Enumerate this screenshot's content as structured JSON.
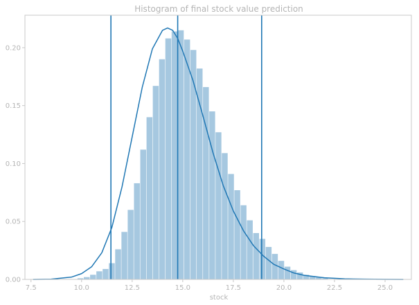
{
  "chart_data": {
    "type": "bar",
    "title": "Histogram of final stock value prediction",
    "xlabel": "stock",
    "ylabel": "",
    "xlim": [
      7.2,
      26.3
    ],
    "ylim": [
      0,
      0.228
    ],
    "xticks": [
      "7.5",
      "10.0",
      "12.5",
      "15.0",
      "17.5",
      "20.0",
      "22.5",
      "25.0"
    ],
    "yticks": [
      "0.00",
      "0.05",
      "0.10",
      "0.15",
      "0.20"
    ],
    "grid": false,
    "bins": {
      "start": 9.8,
      "width": 0.31,
      "values": [
        0.001,
        0.002,
        0.004,
        0.007,
        0.009,
        0.014,
        0.026,
        0.041,
        0.06,
        0.083,
        0.112,
        0.14,
        0.167,
        0.19,
        0.208,
        0.214,
        0.215,
        0.207,
        0.198,
        0.182,
        0.166,
        0.145,
        0.127,
        0.109,
        0.091,
        0.077,
        0.064,
        0.051,
        0.04,
        0.035,
        0.028,
        0.022,
        0.016,
        0.011,
        0.008,
        0.006,
        0.004,
        0.003,
        0.002,
        0.001
      ]
    },
    "kde": {
      "x": [
        7.6,
        8.5,
        9.5,
        10.0,
        10.5,
        11.0,
        11.5,
        12.0,
        12.5,
        13.0,
        13.5,
        14.0,
        14.25,
        14.5,
        14.75,
        15.0,
        15.5,
        16.0,
        16.5,
        17.0,
        17.5,
        18.0,
        18.5,
        19.0,
        19.5,
        20.0,
        20.5,
        21.0,
        22.0,
        23.0,
        24.0,
        25.0,
        25.9
      ],
      "y": [
        0.0,
        0.0002,
        0.002,
        0.005,
        0.011,
        0.023,
        0.045,
        0.08,
        0.123,
        0.166,
        0.199,
        0.215,
        0.217,
        0.215,
        0.208,
        0.197,
        0.172,
        0.141,
        0.109,
        0.081,
        0.059,
        0.042,
        0.029,
        0.02,
        0.013,
        0.009,
        0.0055,
        0.0035,
        0.0014,
        0.0005,
        0.0002,
        0.0001,
        0.0
      ],
      "color": "#1f77b4"
    },
    "vlines": [
      11.45,
      14.75,
      18.9
    ],
    "colors": {
      "bar": "#a6c8e0",
      "line": "#1f77b4",
      "axis": "#c8c8c8",
      "text": "#b4b4b4"
    }
  }
}
